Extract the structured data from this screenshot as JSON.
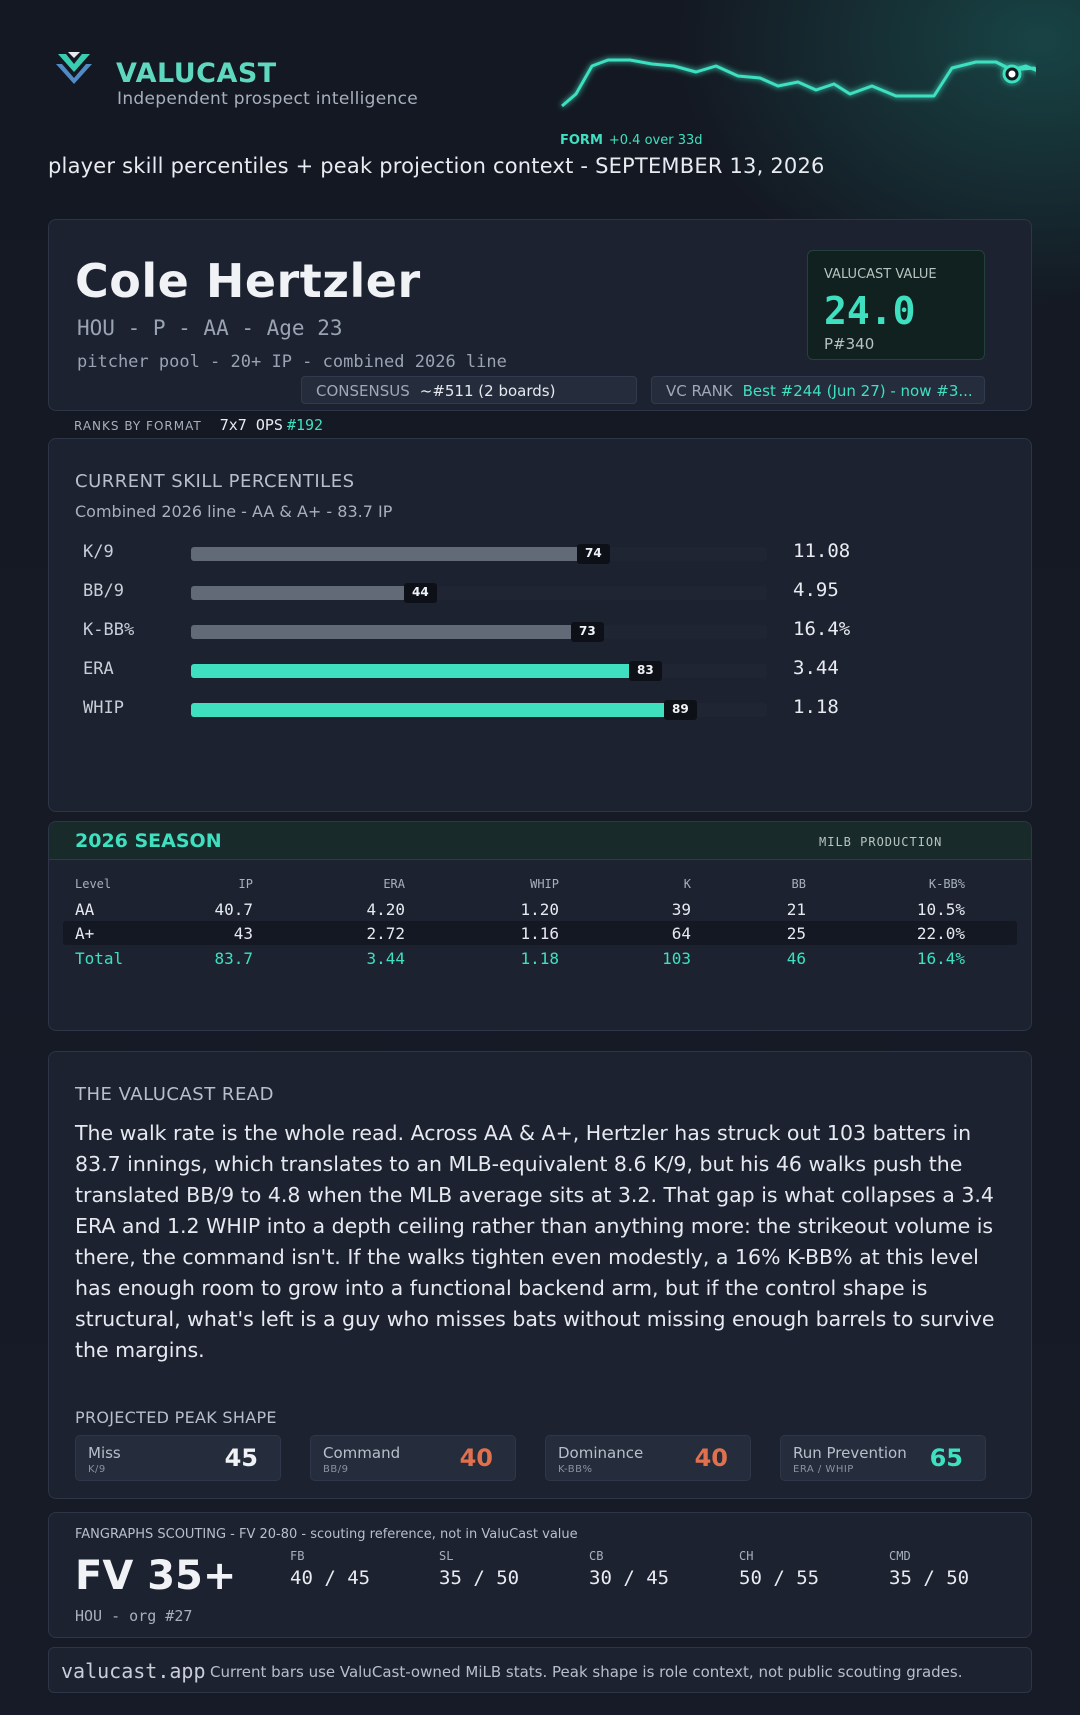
{
  "header": {
    "brand": "VALUCAST",
    "tagline": "Independent prospect intelligence",
    "form_label": "FORM",
    "form_delta": "+0.4 over 33d",
    "subtitle": "player skill percentiles + peak projection context - SEPTEMBER 13, 2026"
  },
  "player": {
    "name": "Cole Hertzler",
    "meta": "HOU - P - AA - Age 23",
    "pool": "pitcher pool - 20+ IP - combined 2026 line",
    "value_label": "VALUCAST VALUE",
    "value": "24.0",
    "value_rank": "P#340",
    "consensus_label": "CONSENSUS",
    "consensus_value": "~#511 (2 boards)",
    "vc_rank_label": "VC RANK",
    "vc_rank_value": "Best #244 (Jun 27) - now #3..."
  },
  "ranks_by_format": {
    "label": "RANKS BY FORMAT",
    "format": "7x7 OPS",
    "rank": "#192"
  },
  "percentiles": {
    "title": "CURRENT SKILL PERCENTILES",
    "subtitle": "Combined 2026 line - AA & A+ - 83.7 IP",
    "rows": [
      {
        "label": "K/9",
        "pct": 74,
        "pct_label": "74",
        "value": "11.08",
        "highlight": false
      },
      {
        "label": "BB/9",
        "pct": 44,
        "pct_label": "44",
        "value": "4.95",
        "highlight": false
      },
      {
        "label": "K-BB%",
        "pct": 73,
        "pct_label": "73",
        "value": "16.4%",
        "highlight": false
      },
      {
        "label": "ERA",
        "pct": 83,
        "pct_label": "83",
        "value": "3.44",
        "highlight": true
      },
      {
        "label": "WHIP",
        "pct": 89,
        "pct_label": "89",
        "value": "1.18",
        "highlight": true
      }
    ]
  },
  "season": {
    "title": "2026 SEASON",
    "meta": "MILB PRODUCTION",
    "columns": [
      "Level",
      "IP",
      "ERA",
      "WHIP",
      "K",
      "BB",
      "K-BB%"
    ],
    "rows": [
      [
        "AA",
        "40.7",
        "4.20",
        "1.20",
        "39",
        "21",
        "10.5%"
      ],
      [
        "A+",
        "43",
        "2.72",
        "1.16",
        "64",
        "25",
        "22.0%"
      ]
    ],
    "total": [
      "Total",
      "83.7",
      "3.44",
      "1.18",
      "103",
      "46",
      "16.4%"
    ]
  },
  "read": {
    "title": "THE VALUCAST READ",
    "body": "The walk rate is the whole read. Across AA & A+, Hertzler has struck out 103 batters in 83.7 innings, which translates to an MLB-equivalent 8.6 K/9, but his 46 walks push the translated BB/9 to 4.8 when the MLB average sits at 3.2. That gap is what collapses a 3.4 ERA and 1.2 WHIP into a depth ceiling rather than anything more: the strikeout volume is there, the command isn't. If the walks tighten even modestly, a 16% K-BB% at this level has enough room to grow into a functional backend arm, but if the control shape is structural, what's left is a guy who misses bats without missing enough barrels to survive the margins.",
    "peak_title": "PROJECTED PEAK SHAPE",
    "peak": [
      {
        "name": "Miss",
        "stat": "K/9",
        "grade": "45",
        "tone": "w"
      },
      {
        "name": "Command",
        "stat": "BB/9",
        "grade": "40",
        "tone": "o"
      },
      {
        "name": "Dominance",
        "stat": "K-BB%",
        "grade": "40",
        "tone": "o"
      },
      {
        "name": "Run Prevention",
        "stat": "ERA / WHIP",
        "grade": "65",
        "tone": "t"
      }
    ]
  },
  "scouting": {
    "header": "FANGRAPHS SCOUTING - FV 20-80 - scouting reference, not in ValuCast value",
    "fv": "FV 35+",
    "org": "HOU - org #27",
    "pitches": [
      {
        "label": "FB",
        "grade": "40 / 45"
      },
      {
        "label": "SL",
        "grade": "35 / 50"
      },
      {
        "label": "CB",
        "grade": "30 / 45"
      },
      {
        "label": "CH",
        "grade": "50 / 55"
      },
      {
        "label": "CMD",
        "grade": "35 / 50"
      }
    ]
  },
  "footer": {
    "domain": "valucast.app",
    "note": "Current bars use ValuCast-owned MiLB stats. Peak shape is role context, not public scouting grades."
  },
  "colors": {
    "accent": "#3ee0c0",
    "bar_neutral": "#626a78",
    "grade_low": "#e0714f"
  }
}
